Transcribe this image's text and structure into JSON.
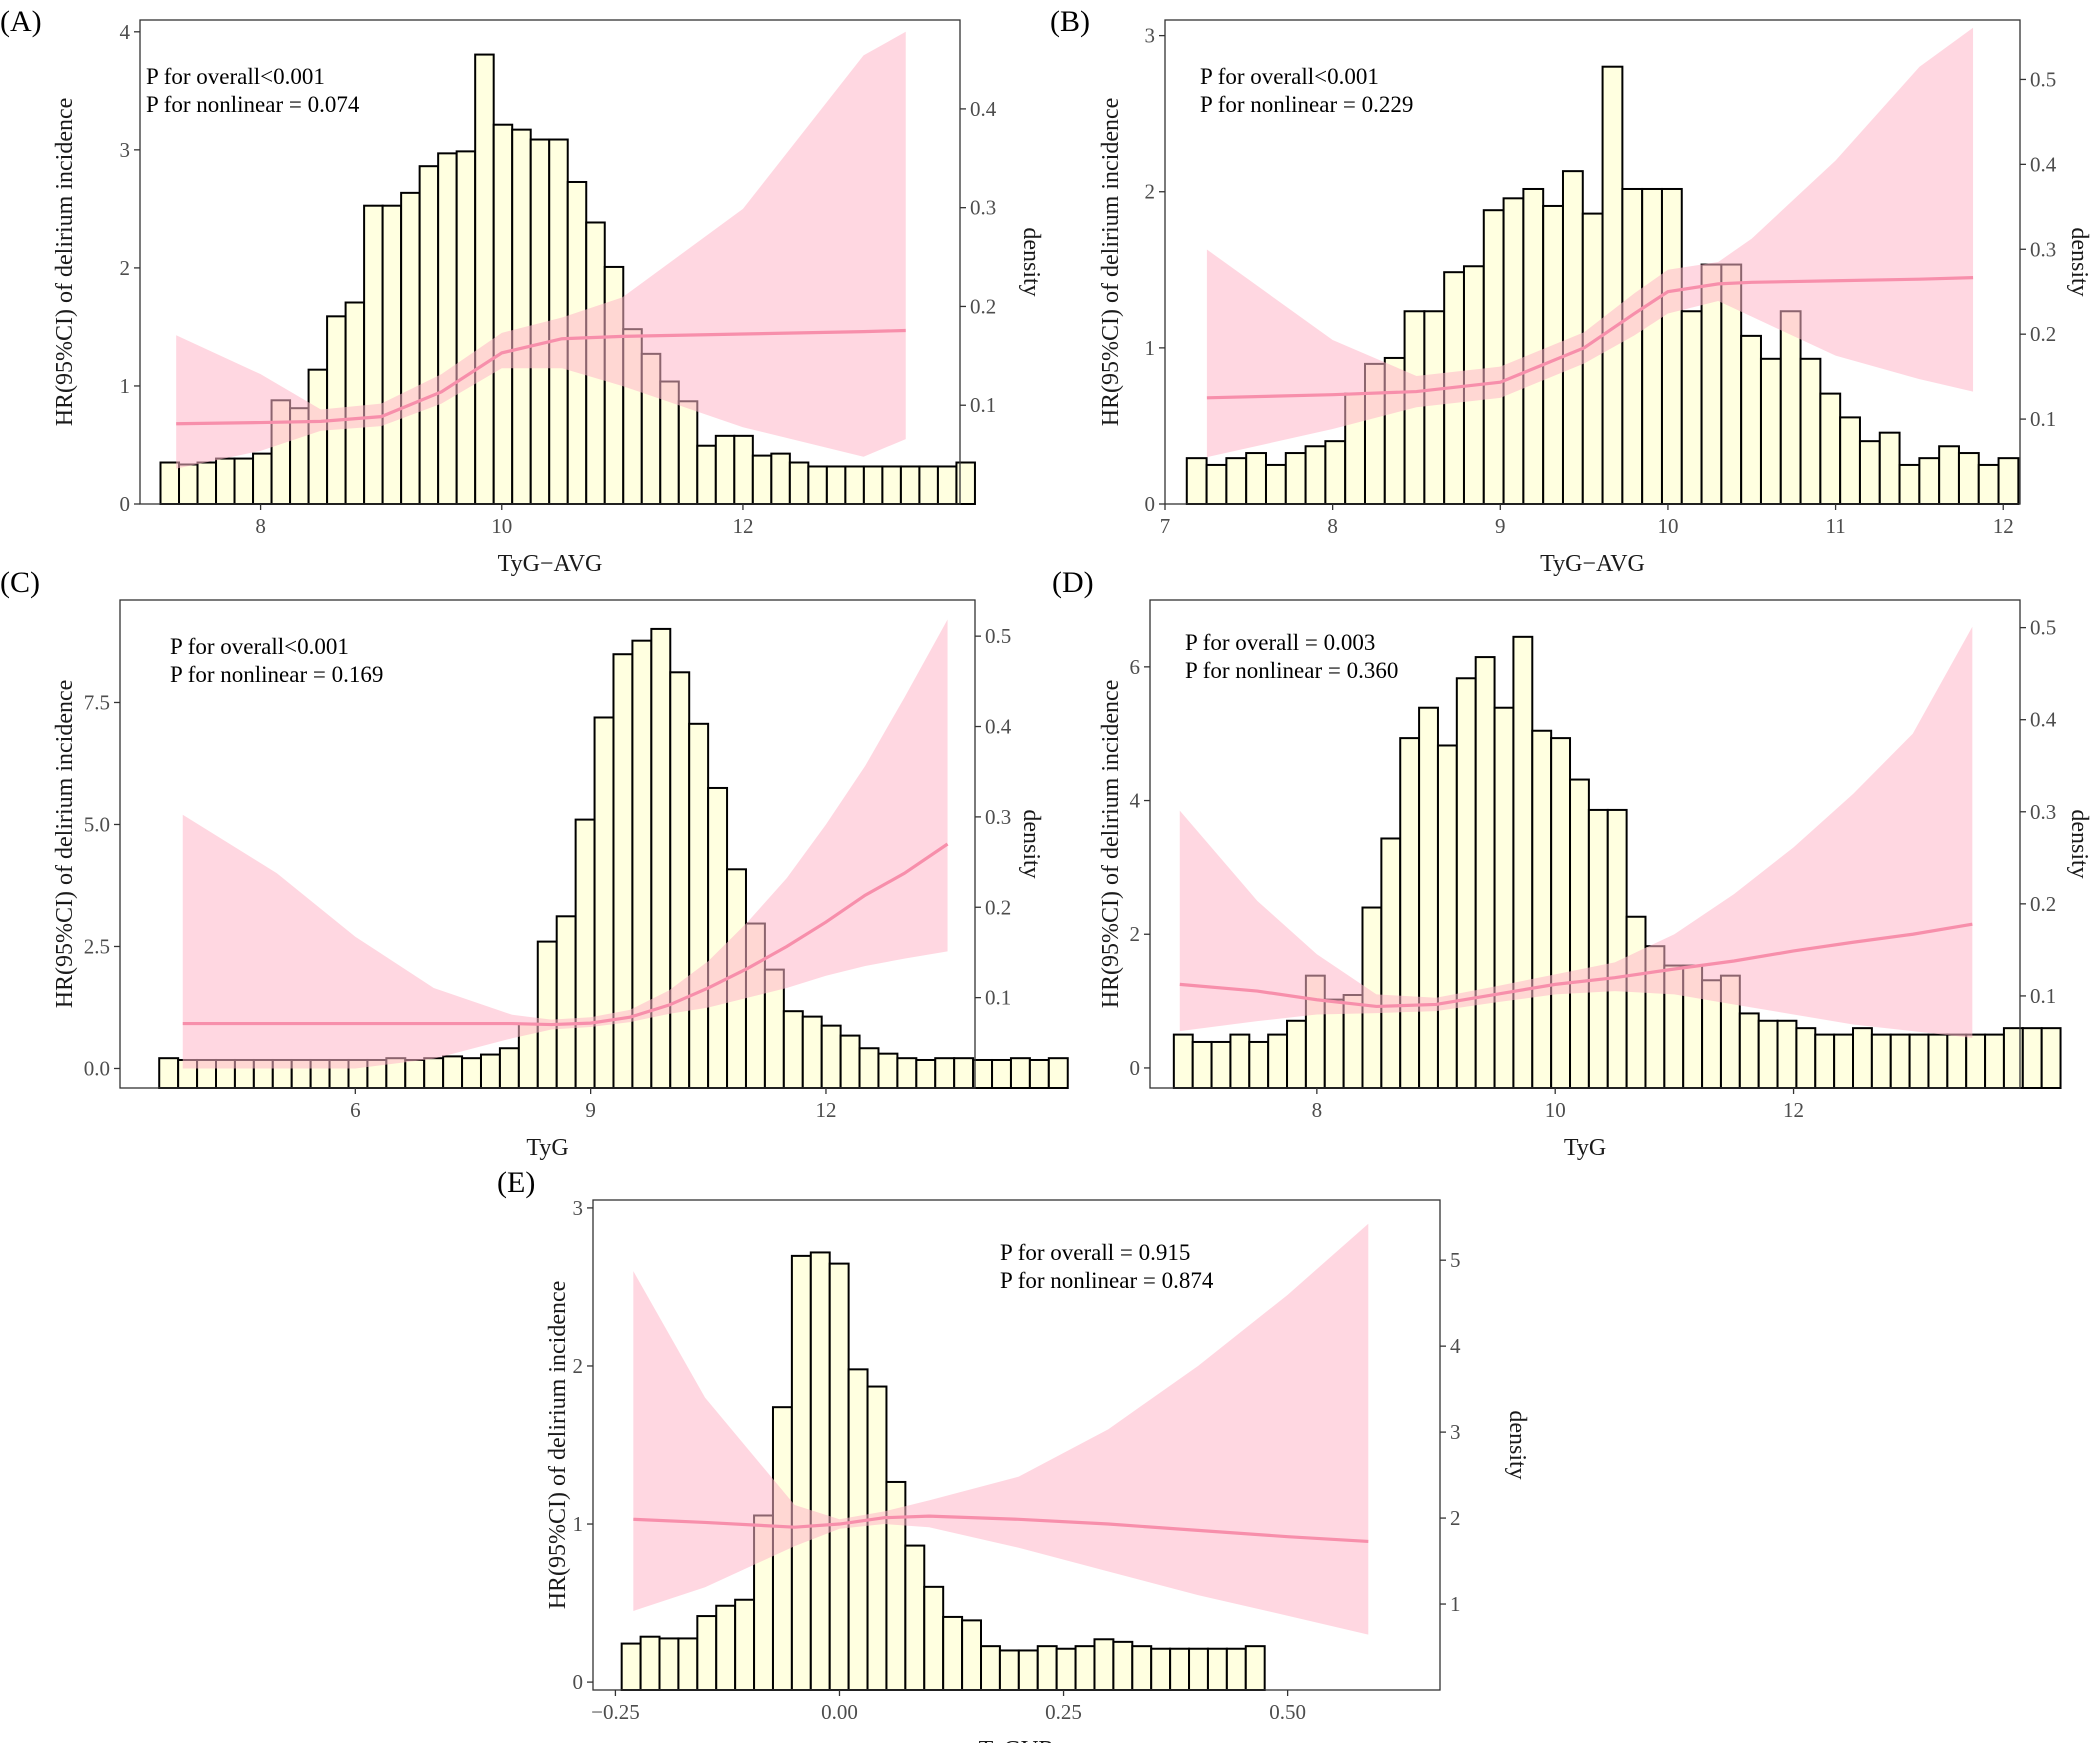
{
  "chart_data": [
    {
      "id": "A",
      "type": "bar+line",
      "panel_label": "(A)",
      "xlabel": "TyG−AVG",
      "ylabel": "HR(95%CI) of delirium incidence",
      "y2label": "density",
      "xlim": [
        7.0,
        13.8
      ],
      "ylim": [
        0,
        4.1
      ],
      "y2lim": [
        0,
        0.49
      ],
      "xticks": [
        {
          "v": 8,
          "label": "8"
        },
        {
          "v": 10,
          "label": "10"
        },
        {
          "v": 12,
          "label": "12"
        }
      ],
      "yticks": [
        {
          "v": 0,
          "label": "0"
        },
        {
          "v": 1,
          "label": "1"
        },
        {
          "v": 2,
          "label": "2"
        },
        {
          "v": 3,
          "label": "3"
        },
        {
          "v": 4,
          "label": "4"
        }
      ],
      "y2ticks": [
        {
          "v": 0.1,
          "label": "0.1"
        },
        {
          "v": 0.2,
          "label": "0.2"
        },
        {
          "v": 0.3,
          "label": "0.3"
        },
        {
          "v": 0.4,
          "label": "0.4"
        }
      ],
      "annotation": [
        "P for overall<0.001",
        "P for nonlinear = 0.074"
      ],
      "annotation_anchor": "top-left",
      "hist": {
        "start": 7.17,
        "width": 0.1535,
        "values": [
          0.042,
          0.04,
          0.042,
          0.046,
          0.046,
          0.051,
          0.105,
          0.097,
          0.136,
          0.19,
          0.204,
          0.302,
          0.302,
          0.315,
          0.342,
          0.355,
          0.357,
          0.455,
          0.384,
          0.379,
          0.369,
          0.369,
          0.326,
          0.285,
          0.24,
          0.177,
          0.152,
          0.124,
          0.104,
          0.059,
          0.069,
          0.069,
          0.049,
          0.051,
          0.042,
          0.038,
          0.038,
          0.038,
          0.038,
          0.038,
          0.038,
          0.038,
          0.038,
          0.042
        ]
      },
      "hr": {
        "x": [
          7.3,
          8.0,
          8.5,
          9.0,
          9.5,
          10.0,
          10.5,
          11.0,
          12.0,
          13.0,
          13.35
        ],
        "y": [
          0.68,
          0.69,
          0.7,
          0.74,
          0.95,
          1.28,
          1.4,
          1.42,
          1.44,
          1.46,
          1.47
        ],
        "lower": [
          0.3,
          0.45,
          0.62,
          0.66,
          0.85,
          1.15,
          1.15,
          1.0,
          0.65,
          0.4,
          0.55
        ],
        "upper": [
          1.43,
          1.1,
          0.8,
          0.85,
          1.1,
          1.45,
          1.58,
          1.75,
          2.5,
          3.8,
          4.0
        ]
      }
    },
    {
      "id": "B",
      "type": "bar+line",
      "panel_label": "(B)",
      "xlabel": "TyG−AVG",
      "ylabel": "HR(95%CI) of delirium incidence",
      "y2label": "density",
      "xlim": [
        7.0,
        12.1
      ],
      "ylim": [
        0,
        3.1
      ],
      "y2lim": [
        0,
        0.57
      ],
      "xticks": [
        {
          "v": 7,
          "label": "7"
        },
        {
          "v": 8,
          "label": "8"
        },
        {
          "v": 9,
          "label": "9"
        },
        {
          "v": 10,
          "label": "10"
        },
        {
          "v": 11,
          "label": "11"
        },
        {
          "v": 12,
          "label": "12"
        }
      ],
      "yticks": [
        {
          "v": 0,
          "label": "0"
        },
        {
          "v": 1,
          "label": "1"
        },
        {
          "v": 2,
          "label": "2"
        },
        {
          "v": 3,
          "label": "3"
        }
      ],
      "y2ticks": [
        {
          "v": 0.1,
          "label": "0.1"
        },
        {
          "v": 0.2,
          "label": "0.2"
        },
        {
          "v": 0.3,
          "label": "0.3"
        },
        {
          "v": 0.4,
          "label": "0.4"
        },
        {
          "v": 0.5,
          "label": "0.5"
        }
      ],
      "annotation": [
        "P for overall<0.001",
        "P for nonlinear = 0.229"
      ],
      "annotation_anchor": "top-left",
      "hist": {
        "start": 7.13,
        "width": 0.1181,
        "values": [
          0.054,
          0.046,
          0.054,
          0.06,
          0.046,
          0.06,
          0.068,
          0.074,
          0.13,
          0.165,
          0.172,
          0.227,
          0.227,
          0.273,
          0.28,
          0.346,
          0.36,
          0.371,
          0.351,
          0.392,
          0.342,
          0.515,
          0.371,
          0.371,
          0.371,
          0.227,
          0.282,
          0.282,
          0.198,
          0.171,
          0.227,
          0.171,
          0.13,
          0.102,
          0.074,
          0.084,
          0.046,
          0.054,
          0.068,
          0.06,
          0.046,
          0.054
        ]
      },
      "hr": {
        "x": [
          7.25,
          8.0,
          8.5,
          9.0,
          9.5,
          9.8,
          10.0,
          10.3,
          10.5,
          11.0,
          11.5,
          11.82
        ],
        "y": [
          0.68,
          0.7,
          0.72,
          0.78,
          1.0,
          1.22,
          1.36,
          1.41,
          1.42,
          1.43,
          1.44,
          1.45
        ],
        "lower": [
          0.3,
          0.48,
          0.62,
          0.68,
          0.9,
          1.08,
          1.22,
          1.3,
          1.2,
          0.95,
          0.8,
          0.72
        ],
        "upper": [
          1.63,
          1.05,
          0.82,
          0.88,
          1.1,
          1.35,
          1.5,
          1.55,
          1.7,
          2.2,
          2.8,
          3.05
        ]
      }
    },
    {
      "id": "C",
      "type": "bar+line",
      "panel_label": "(C)",
      "xlabel": "TyG",
      "ylabel": "HR(95%CI) of delirium incidence",
      "y2label": "density",
      "xlim": [
        3.0,
        13.9
      ],
      "ylim": [
        -0.4,
        9.6
      ],
      "y2lim": [
        0,
        0.54
      ],
      "xticks": [
        {
          "v": 6,
          "label": "6"
        },
        {
          "v": 9,
          "label": "9"
        },
        {
          "v": 12,
          "label": "12"
        }
      ],
      "yticks": [
        {
          "v": 0,
          "label": "0.0"
        },
        {
          "v": 2.5,
          "label": "2.5"
        },
        {
          "v": 5.0,
          "label": "5.0"
        },
        {
          "v": 7.5,
          "label": "7.5"
        }
      ],
      "y2ticks": [
        {
          "v": 0.1,
          "label": "0.1"
        },
        {
          "v": 0.2,
          "label": "0.2"
        },
        {
          "v": 0.3,
          "label": "0.3"
        },
        {
          "v": 0.4,
          "label": "0.4"
        },
        {
          "v": 0.5,
          "label": "0.5"
        }
      ],
      "annotation": [
        "P for overall<0.001",
        "P for nonlinear = 0.169"
      ],
      "annotation_anchor": "top-left",
      "hist": {
        "start": 3.5,
        "width": 0.2413,
        "values": [
          0.033,
          0.031,
          0.031,
          0.031,
          0.031,
          0.031,
          0.031,
          0.031,
          0.031,
          0.031,
          0.031,
          0.031,
          0.033,
          0.031,
          0.033,
          0.035,
          0.033,
          0.037,
          0.044,
          0.071,
          0.162,
          0.19,
          0.297,
          0.41,
          0.48,
          0.495,
          0.508,
          0.46,
          0.403,
          0.332,
          0.242,
          0.182,
          0.131,
          0.085,
          0.079,
          0.069,
          0.058,
          0.044,
          0.038,
          0.033,
          0.031,
          0.033,
          0.033,
          0.031,
          0.031,
          0.033,
          0.031,
          0.033
        ]
      },
      "hr": {
        "x": [
          3.8,
          5.0,
          6.0,
          7.0,
          8.0,
          8.5,
          9.0,
          9.5,
          10.0,
          10.5,
          11.0,
          11.5,
          12.0,
          12.5,
          13.0,
          13.55
        ],
        "y": [
          0.92,
          0.92,
          0.92,
          0.92,
          0.92,
          0.9,
          0.93,
          1.05,
          1.3,
          1.65,
          2.05,
          2.5,
          3.0,
          3.55,
          4.0,
          4.6
        ],
        "lower": [
          0.0,
          0.0,
          0.0,
          0.2,
          0.62,
          0.8,
          0.85,
          0.95,
          1.12,
          1.25,
          1.45,
          1.65,
          1.9,
          2.1,
          2.25,
          2.4
        ],
        "upper": [
          5.2,
          4.0,
          2.7,
          1.65,
          1.1,
          1.0,
          1.05,
          1.2,
          1.6,
          2.2,
          3.0,
          3.9,
          5.0,
          6.2,
          7.6,
          9.2
        ]
      }
    },
    {
      "id": "D",
      "type": "bar+line",
      "panel_label": "(D)",
      "xlabel": "TyG",
      "ylabel": "HR(95%CI) of delirium incidence",
      "y2label": "density",
      "xlim": [
        6.6,
        13.9
      ],
      "ylim": [
        -0.3,
        7.0
      ],
      "y2lim": [
        0,
        0.53
      ],
      "xticks": [
        {
          "v": 8,
          "label": "8"
        },
        {
          "v": 10,
          "label": "10"
        },
        {
          "v": 12,
          "label": "12"
        }
      ],
      "yticks": [
        {
          "v": 0,
          "label": "0"
        },
        {
          "v": 2,
          "label": "2"
        },
        {
          "v": 4,
          "label": "4"
        },
        {
          "v": 6,
          "label": "6"
        }
      ],
      "y2ticks": [
        {
          "v": 0.1,
          "label": "0.1"
        },
        {
          "v": 0.2,
          "label": "0.2"
        },
        {
          "v": 0.3,
          "label": "0.3"
        },
        {
          "v": 0.4,
          "label": "0.4"
        },
        {
          "v": 0.5,
          "label": "0.5"
        }
      ],
      "annotation": [
        "P for overall = 0.003",
        "P for nonlinear = 0.360"
      ],
      "annotation_anchor": "top-left",
      "hist": {
        "start": 6.8,
        "width": 0.1583,
        "values": [
          0.058,
          0.05,
          0.05,
          0.058,
          0.05,
          0.058,
          0.073,
          0.122,
          0.096,
          0.101,
          0.196,
          0.271,
          0.38,
          0.413,
          0.372,
          0.445,
          0.468,
          0.413,
          0.49,
          0.388,
          0.38,
          0.335,
          0.302,
          0.302,
          0.186,
          0.154,
          0.133,
          0.133,
          0.117,
          0.122,
          0.081,
          0.073,
          0.073,
          0.065,
          0.058,
          0.058,
          0.065,
          0.058,
          0.058,
          0.058,
          0.058,
          0.058,
          0.058,
          0.058,
          0.065,
          0.065,
          0.065
        ]
      },
      "hr": {
        "x": [
          6.85,
          7.5,
          8.0,
          8.5,
          9.0,
          9.5,
          10.0,
          10.5,
          11.0,
          11.5,
          12.0,
          12.5,
          13.0,
          13.5
        ],
        "y": [
          1.25,
          1.15,
          1.02,
          0.92,
          0.95,
          1.1,
          1.25,
          1.35,
          1.48,
          1.6,
          1.75,
          1.88,
          2.0,
          2.15
        ],
        "lower": [
          0.55,
          0.7,
          0.8,
          0.82,
          0.85,
          0.98,
          1.1,
          1.15,
          1.1,
          0.95,
          0.8,
          0.65,
          0.55,
          0.45
        ],
        "upper": [
          3.85,
          2.5,
          1.7,
          1.1,
          1.05,
          1.22,
          1.4,
          1.58,
          2.0,
          2.6,
          3.3,
          4.1,
          5.0,
          6.6
        ]
      }
    },
    {
      "id": "E",
      "type": "bar+line",
      "panel_label": "(E)",
      "xlabel": "TyGVR",
      "ylabel": "HR(95%CI) of delirium incidence",
      "y2label": "density",
      "xlim": [
        -0.275,
        0.67
      ],
      "ylim": [
        -0.05,
        3.05
      ],
      "y2lim": [
        0,
        5.7
      ],
      "xticks": [
        {
          "v": -0.25,
          "label": "−0.25"
        },
        {
          "v": 0.0,
          "label": "0.00"
        },
        {
          "v": 0.25,
          "label": "0.25"
        },
        {
          "v": 0.5,
          "label": "0.50"
        }
      ],
      "yticks": [
        {
          "v": 0,
          "label": "0"
        },
        {
          "v": 1,
          "label": "1"
        },
        {
          "v": 2,
          "label": "2"
        },
        {
          "v": 3,
          "label": "3"
        }
      ],
      "y2ticks": [
        {
          "v": 1,
          "label": "1"
        },
        {
          "v": 2,
          "label": "2"
        },
        {
          "v": 3,
          "label": "3"
        },
        {
          "v": 4,
          "label": "4"
        },
        {
          "v": 5,
          "label": "5"
        }
      ],
      "annotation": [
        "P for overall = 0.915",
        "P for nonlinear = 0.874"
      ],
      "annotation_anchor": "top-center",
      "hist": {
        "start": -0.243,
        "width": 0.0211,
        "values": [
          0.54,
          0.62,
          0.6,
          0.6,
          0.86,
          0.98,
          1.05,
          2.03,
          3.29,
          5.05,
          5.09,
          4.96,
          3.73,
          3.53,
          2.42,
          1.68,
          1.2,
          0.85,
          0.81,
          0.51,
          0.46,
          0.46,
          0.51,
          0.48,
          0.51,
          0.59,
          0.56,
          0.51,
          0.48,
          0.48,
          0.48,
          0.48,
          0.48,
          0.51
        ]
      },
      "hr": {
        "x": [
          -0.23,
          -0.15,
          -0.05,
          0.0,
          0.05,
          0.1,
          0.2,
          0.3,
          0.4,
          0.5,
          0.59
        ],
        "y": [
          1.03,
          1.01,
          0.98,
          1.0,
          1.04,
          1.05,
          1.03,
          1.0,
          0.96,
          0.92,
          0.89
        ],
        "lower": [
          0.45,
          0.6,
          0.86,
          0.97,
          1.0,
          0.98,
          0.85,
          0.7,
          0.55,
          0.42,
          0.3
        ],
        "upper": [
          2.6,
          1.8,
          1.12,
          1.03,
          1.08,
          1.15,
          1.3,
          1.6,
          2.0,
          2.45,
          2.9
        ]
      }
    }
  ]
}
